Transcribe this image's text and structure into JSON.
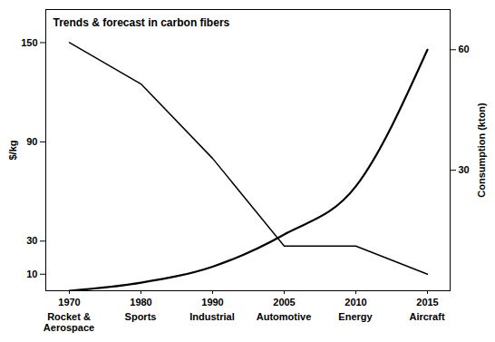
{
  "chart_data": {
    "type": "line",
    "title": "Trends & forecast in carbon fibers",
    "categories": [
      "1970",
      "1980",
      "1990",
      "2005",
      "2010",
      "2015"
    ],
    "applications": [
      "Rocket & Aerospace",
      "Sports",
      "Industrial",
      "Automotive",
      "Energy",
      "Aircraft"
    ],
    "ylabel": "$/kg",
    "y2label": "Consumption (kton)",
    "ylim": [
      0,
      170
    ],
    "yticks": [
      10,
      30,
      90,
      150
    ],
    "y2lim": [
      0,
      70
    ],
    "y2ticks": [
      30,
      60
    ],
    "grid": false,
    "series": [
      {
        "name": "$/kg",
        "color": "#000000",
        "axis": "y",
        "values": [
          150,
          125,
          80,
          27,
          27,
          10
        ]
      },
      {
        "name": "Consumption (kton)",
        "color": "#000000",
        "axis": "y2",
        "values": [
          0,
          2,
          6,
          14,
          26,
          60
        ]
      }
    ]
  }
}
